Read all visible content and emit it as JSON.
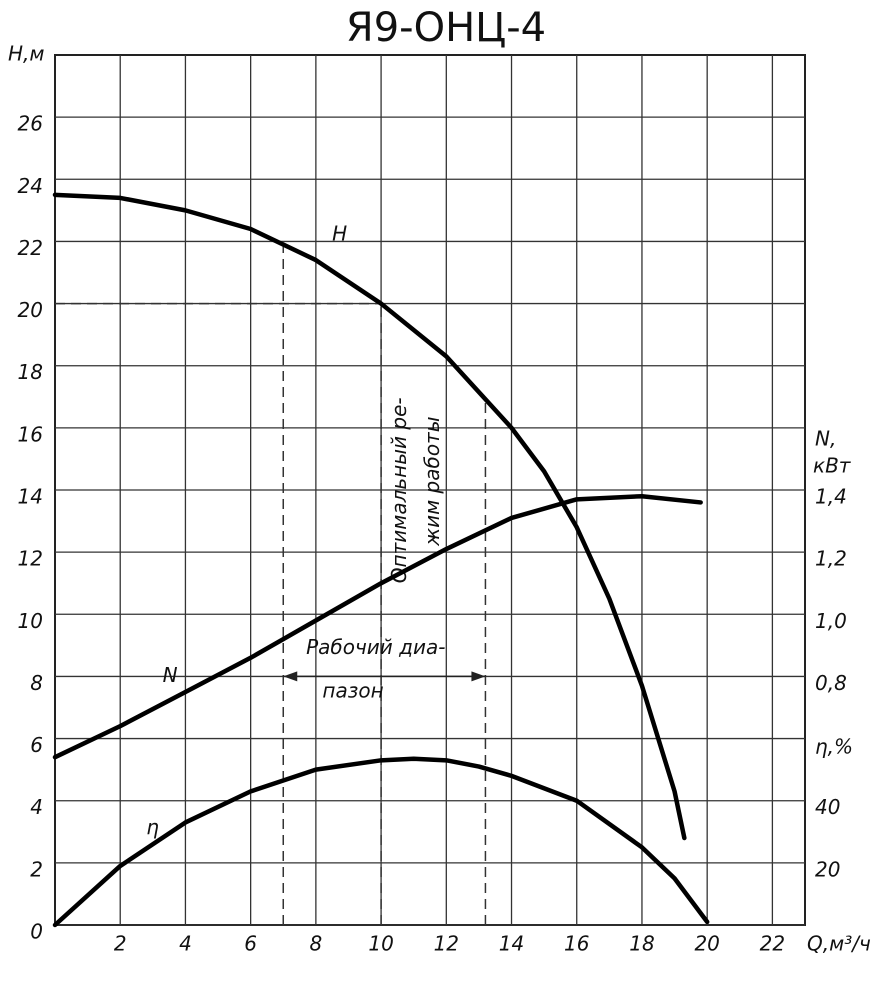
{
  "chart_data": {
    "type": "line",
    "title": "Я9-ОНЦ-4",
    "x_label": "Q,м³/ч",
    "y_label": "H,м",
    "y2_label": [
      "N,",
      "кВт"
    ],
    "y3_label": "η,%",
    "xlim": [
      0,
      23
    ],
    "xticks": [
      2,
      4,
      6,
      8,
      10,
      12,
      14,
      16,
      18,
      20,
      22
    ],
    "ylim": [
      0,
      28
    ],
    "yticks": [
      0,
      2,
      4,
      6,
      8,
      10,
      12,
      14,
      16,
      18,
      20,
      22,
      24,
      26
    ],
    "y2lim": [
      0,
      2.8
    ],
    "y2ticks": [
      {
        "value": 0.8,
        "label": "0,8"
      },
      {
        "value": 1.0,
        "label": "1,0"
      },
      {
        "value": 1.2,
        "label": "1,2"
      },
      {
        "value": 1.4,
        "label": "1,4"
      }
    ],
    "y3lim": [
      0,
      280
    ],
    "y3ticks": [
      20,
      40
    ],
    "grid": true,
    "series": [
      {
        "name": "H",
        "color": "#000000",
        "x": [
          0,
          2,
          4,
          6,
          8,
          10,
          12,
          14,
          15,
          16,
          17,
          18,
          19,
          19.3
        ],
        "values": [
          23.5,
          23.4,
          23.0,
          22.4,
          21.4,
          20.0,
          18.3,
          16.0,
          14.6,
          12.8,
          10.5,
          7.7,
          4.3,
          2.8
        ]
      },
      {
        "name": "N",
        "color": "#000000",
        "axis": "y2",
        "x": [
          0,
          2,
          4,
          6,
          8,
          10,
          12,
          14,
          16,
          18,
          19.8
        ],
        "values": [
          0.54,
          0.64,
          0.75,
          0.86,
          0.98,
          1.1,
          1.21,
          1.31,
          1.37,
          1.38,
          1.36
        ]
      },
      {
        "name": "η",
        "color": "#000000",
        "axis": "y3",
        "x": [
          0,
          2,
          4,
          6,
          8,
          10,
          11,
          12,
          13,
          14,
          16,
          18,
          19,
          20
        ],
        "values": [
          0,
          19,
          33,
          43,
          50,
          53,
          53.5,
          53,
          51,
          48,
          40,
          25,
          15,
          1
        ]
      }
    ],
    "optimum": {
      "x": 10,
      "y": 20
    },
    "optimum_label": [
      "Оптимальный ре-",
      "жим работы"
    ],
    "working_range": [
      7,
      13.2
    ],
    "working_range_label": [
      "Рабочий диа-",
      "пазон"
    ]
  }
}
